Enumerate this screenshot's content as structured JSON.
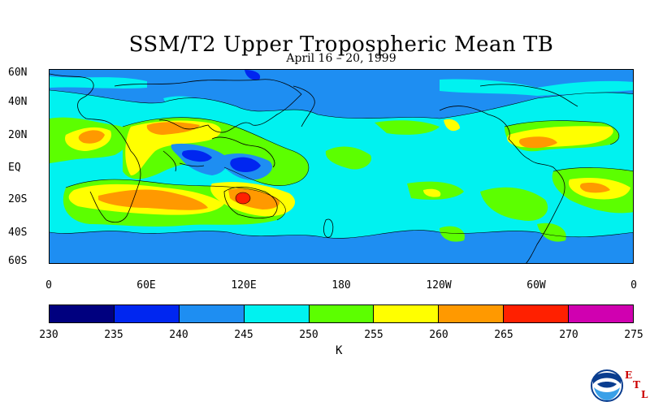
{
  "title": "SSM/T2 Upper Tropospheric Mean TB",
  "subtitle": "April 16 – 20, 1999",
  "lat_labels": [
    "60N",
    "40N",
    "20N",
    "EQ",
    "20S",
    "40S",
    "60S"
  ],
  "lon_labels": [
    "0",
    "60E",
    "120E",
    "180",
    "120W",
    "60W",
    "0"
  ],
  "colorbar": {
    "unit": "K",
    "ticks": [
      "230",
      "235",
      "240",
      "245",
      "250",
      "255",
      "260",
      "265",
      "270",
      "275"
    ],
    "colors": [
      "#00007f",
      "#0026f0",
      "#1e8ef2",
      "#00f2f0",
      "#5cff00",
      "#ffff00",
      "#ff9900",
      "#ff2000",
      "#d000b0"
    ]
  },
  "logo": {
    "icon": "noaa-logo",
    "letters": [
      "E",
      "T",
      "L"
    ]
  }
}
